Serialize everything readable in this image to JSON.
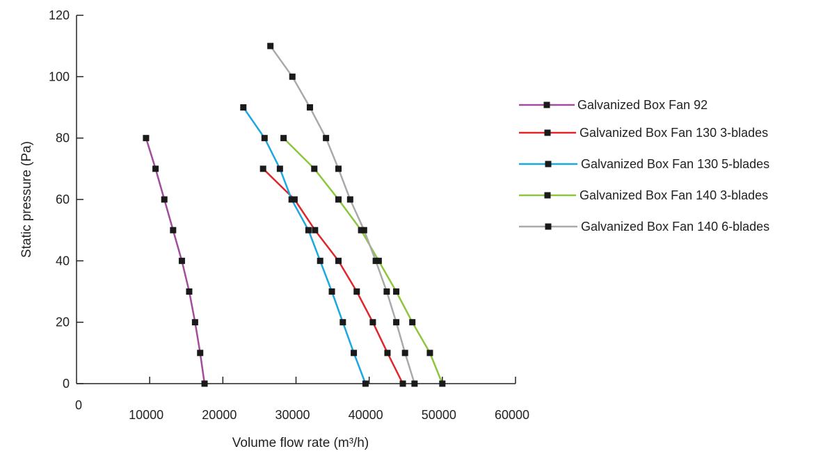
{
  "chart_data": {
    "type": "line",
    "title": "",
    "xlabel": "Volume flow rate (m³/h)",
    "ylabel": "Static pressure (Pa)",
    "xlim": [
      0,
      60000
    ],
    "ylim": [
      0,
      120
    ],
    "x_ticks": [
      "0",
      "10000",
      "20000",
      "30000",
      "40000",
      "50000",
      "60000"
    ],
    "y_ticks": [
      "0",
      "20",
      "40",
      "60",
      "80",
      "100",
      "120"
    ],
    "grid": false,
    "legend_position": "right",
    "marker": "square",
    "series": [
      {
        "name": "Galvanized Box Fan 92",
        "color": "#a14c9c",
        "points": [
          [
            9500,
            80
          ],
          [
            10800,
            70
          ],
          [
            12000,
            60
          ],
          [
            13200,
            50
          ],
          [
            14400,
            40
          ],
          [
            15400,
            30
          ],
          [
            16200,
            20
          ],
          [
            16900,
            10
          ],
          [
            17500,
            0
          ]
        ]
      },
      {
        "name": "Galvanized Box Fan 130 3-blades",
        "color": "#e0262b",
        "points": [
          [
            25500,
            70
          ],
          [
            29800,
            60
          ],
          [
            32600,
            50
          ],
          [
            35800,
            40
          ],
          [
            38300,
            30
          ],
          [
            40500,
            20
          ],
          [
            42500,
            10
          ],
          [
            44600,
            0
          ]
        ]
      },
      {
        "name": "Galvanized Box Fan 130 5-blades",
        "color": "#1ba8e0",
        "points": [
          [
            22800,
            90
          ],
          [
            25700,
            80
          ],
          [
            27800,
            70
          ],
          [
            29400,
            60
          ],
          [
            31700,
            50
          ],
          [
            33300,
            40
          ],
          [
            34900,
            30
          ],
          [
            36400,
            20
          ],
          [
            37900,
            10
          ],
          [
            39500,
            0
          ]
        ]
      },
      {
        "name": "Galvanized Box Fan 140 3-blades",
        "color": "#8cc63f",
        "points": [
          [
            28300,
            80
          ],
          [
            32500,
            70
          ],
          [
            35800,
            60
          ],
          [
            38900,
            50
          ],
          [
            41300,
            40
          ],
          [
            43700,
            30
          ],
          [
            45900,
            20
          ],
          [
            48300,
            10
          ],
          [
            50000,
            0
          ]
        ]
      },
      {
        "name": "Galvanized Box Fan 140 6-blades",
        "color": "#a9a9a9",
        "points": [
          [
            26500,
            110
          ],
          [
            29500,
            100
          ],
          [
            31900,
            90
          ],
          [
            34100,
            80
          ],
          [
            35800,
            70
          ],
          [
            37400,
            60
          ],
          [
            39300,
            50
          ],
          [
            40900,
            40
          ],
          [
            42400,
            30
          ],
          [
            43700,
            20
          ],
          [
            44900,
            10
          ],
          [
            46200,
            0
          ]
        ]
      }
    ]
  }
}
